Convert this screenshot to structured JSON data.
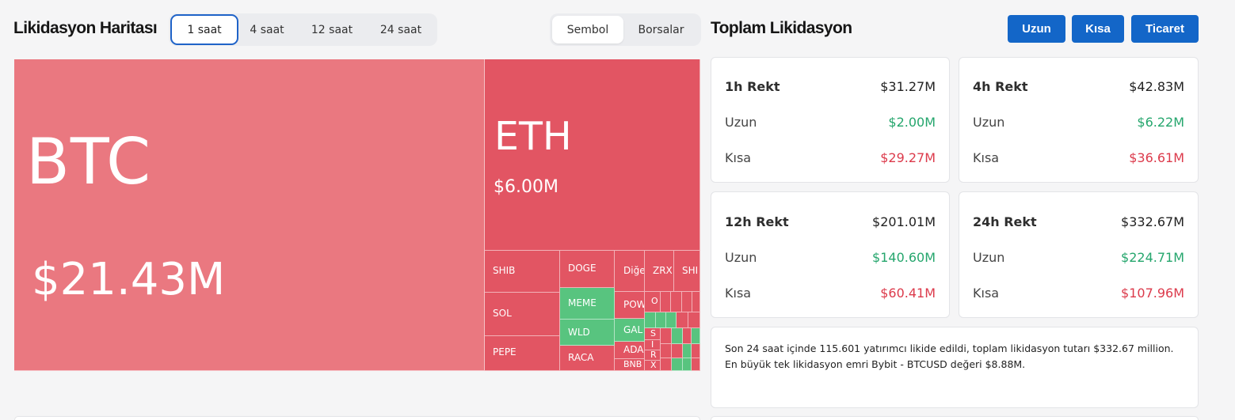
{
  "heatmap": {
    "title": "Likidasyon Haritası",
    "time_options": [
      "1 saat",
      "4 saat",
      "12 saat",
      "24 saat"
    ],
    "active_time": "1 saat",
    "view_options": [
      "Sembol",
      "Borsalar"
    ],
    "active_view": "Sembol",
    "tiles": {
      "btc": {
        "symbol": "BTC",
        "value": "$21.43M"
      },
      "eth": {
        "symbol": "ETH",
        "value": "$6.00M"
      },
      "shib": "SHIB",
      "sol": "SOL",
      "pepe": "PEPE",
      "doge": "DOGE",
      "meme": "MEME",
      "wld": "WLD",
      "raca": "RACA",
      "other": "Diğe",
      "pow": "POW",
      "gal": "GAL",
      "ada": "ADA",
      "bnb": "BNB",
      "zrx": "ZRX",
      "shi2": "SHI",
      "o": "O",
      "s": "S",
      "i": "I",
      "r": "R",
      "x": "X"
    }
  },
  "totals": {
    "title": "Toplam Likidasyon",
    "buttons": {
      "long": "Uzun",
      "short": "Kısa",
      "trade": "Ticaret"
    },
    "long_label": "Uzun",
    "short_label": "Kısa",
    "cards": [
      {
        "title": "1h Rekt",
        "total": "$31.27M",
        "long": "$2.00M",
        "short": "$29.27M"
      },
      {
        "title": "4h Rekt",
        "total": "$42.83M",
        "long": "$6.22M",
        "short": "$36.61M"
      },
      {
        "title": "12h Rekt",
        "total": "$201.01M",
        "long": "$140.60M",
        "short": "$60.41M"
      },
      {
        "title": "24h Rekt",
        "total": "$332.67M",
        "long": "$224.71M",
        "short": "$107.96M"
      }
    ],
    "summary_line1": "Son 24 saat içinde 115.601 yatırımcı likide edildi, toplam likidasyon tutarı $332.67 million.",
    "summary_line2": "En büyük tek likidasyon emri Bybit - BTCUSD değeri $8.88M."
  },
  "colors": {
    "accent": "#1366c8",
    "long": "#25a66d",
    "short": "#dc3a4b",
    "tile_red": "#e25563",
    "tile_green": "#58c47f"
  }
}
